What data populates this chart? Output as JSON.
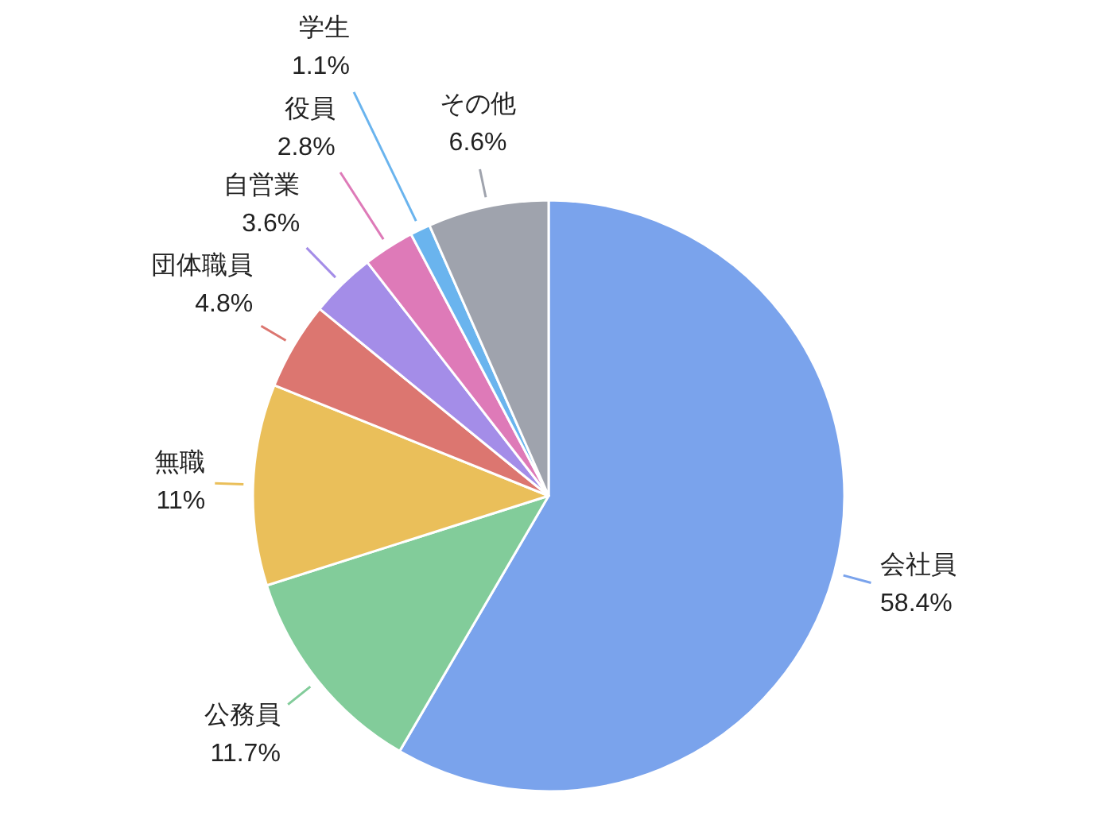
{
  "chart_data": {
    "type": "pie",
    "categories": [
      "会社員",
      "公務員",
      "無職",
      "団体職員",
      "自営業",
      "役員",
      "学生",
      "その他"
    ],
    "values": [
      58.4,
      11.7,
      11,
      4.8,
      3.6,
      2.8,
      1.1,
      6.6
    ],
    "colors": [
      "#7aa3ec",
      "#82cc9a",
      "#eabf5a",
      "#dc7670",
      "#a48de8",
      "#de7ab8",
      "#6ab4ee",
      "#9fa3ad"
    ],
    "value_labels": [
      "58.4%",
      "11.7%",
      "11%",
      "4.8%",
      "3.6%",
      "2.8%",
      "1.1%",
      "6.6%"
    ]
  }
}
